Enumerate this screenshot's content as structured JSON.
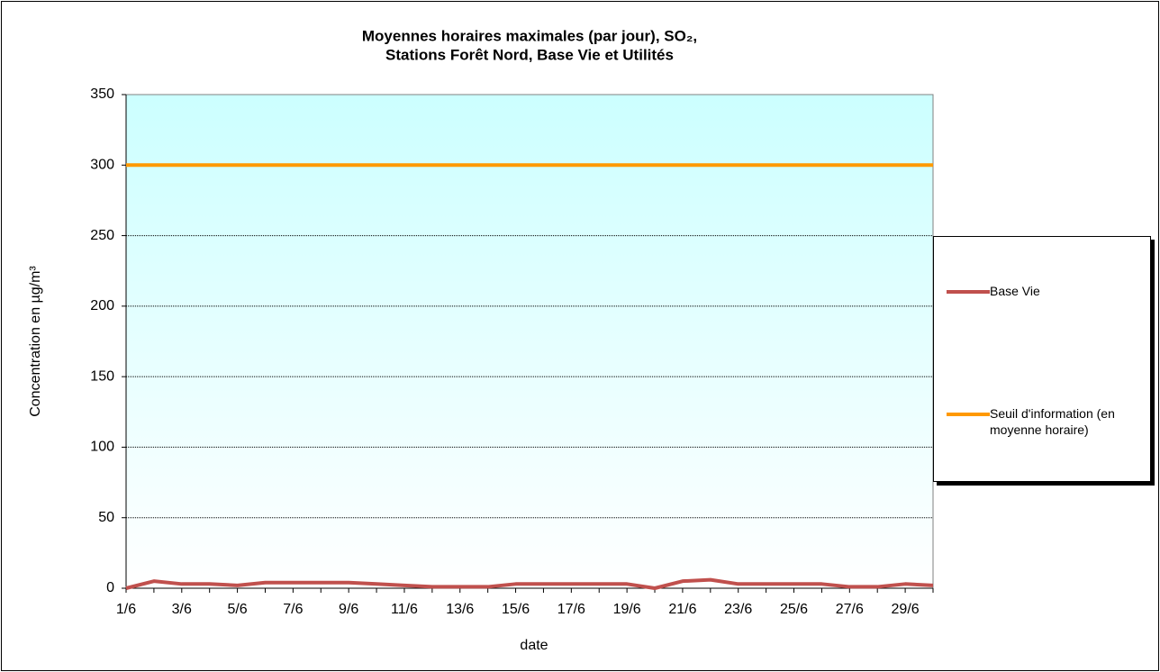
{
  "chart_data": {
    "type": "line",
    "title": [
      "Moyennes horaires maximales (par jour), SO₂,",
      "Stations Forêt Nord, Base Vie et Utilités"
    ],
    "x_label": "date",
    "y_label": "Concentration en µg/m³",
    "categories": [
      "1/6",
      null,
      "3/6",
      null,
      "5/6",
      null,
      "7/6",
      null,
      "9/6",
      null,
      "11/6",
      null,
      "13/6",
      null,
      "15/6",
      null,
      "17/6",
      null,
      "19/6",
      null,
      "21/6",
      null,
      "23/6",
      null,
      "25/6",
      null,
      "27/6",
      null,
      "29/6",
      null
    ],
    "series": [
      {
        "name": "Base Vie",
        "color": "#c0504d",
        "values": [
          0,
          5,
          3,
          3,
          2,
          4,
          4,
          4,
          4,
          3,
          2,
          1,
          1,
          1,
          3,
          3,
          3,
          3,
          3,
          0,
          5,
          6,
          3,
          3,
          3,
          3,
          1,
          1,
          3,
          2
        ]
      },
      {
        "name": "Seuil d'information (en moyenne horaire)",
        "color": "#ff9900",
        "values": [
          300,
          300,
          300,
          300,
          300,
          300,
          300,
          300,
          300,
          300,
          300,
          300,
          300,
          300,
          300,
          300,
          300,
          300,
          300,
          300,
          300,
          300,
          300,
          300,
          300,
          300,
          300,
          300,
          300,
          300
        ]
      }
    ],
    "ylim": [
      0,
      350
    ],
    "yticks": [
      0,
      50,
      100,
      150,
      200,
      250,
      300,
      350
    ],
    "grid": true,
    "legend": "right"
  }
}
